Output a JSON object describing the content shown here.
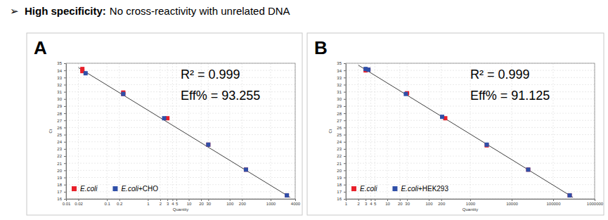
{
  "header": {
    "bullet": "➢",
    "bold": "High specificity:",
    "text": "No cross-reactivity with unrelated DNA"
  },
  "chart_data": [
    {
      "type": "scatter",
      "title": "A",
      "x_label": "Quantity",
      "y_label": "Ct",
      "log": "x",
      "grid": true,
      "legend": "bottom-left",
      "marker": "square",
      "xlim": [
        0.01,
        4000
      ],
      "xticks": [
        0.01,
        0.02,
        0.1,
        0.2,
        1,
        2,
        3,
        4,
        5,
        10,
        20,
        30,
        100,
        200,
        1000,
        4000
      ],
      "ylim": [
        16,
        35
      ],
      "yticks": [
        16,
        17,
        18,
        19,
        20,
        21,
        22,
        23,
        24,
        25,
        26,
        27,
        28,
        29,
        30,
        31,
        32,
        33,
        34,
        35
      ],
      "annotations": [
        "R² = 0.999",
        "Eff% = 93.255"
      ],
      "series": [
        {
          "name": "E.coli",
          "color": "#e8202a",
          "x": [
            0.025,
            0.025,
            0.25,
            0.25,
            3,
            30,
            250,
            2500
          ],
          "values": [
            34.2,
            33.9,
            30.9,
            30.7,
            27.3,
            23.6,
            20.1,
            16.5
          ]
        },
        {
          "name": "E.coli+CHO",
          "color": "#2f4fa8",
          "x": [
            0.03,
            0.25,
            2.5,
            30,
            250,
            2500
          ],
          "values": [
            33.6,
            30.7,
            27.3,
            23.6,
            20.1,
            16.5
          ]
        },
        {
          "type": "line",
          "line_style": "solid",
          "color": "#404040",
          "x": [
            0.02,
            3000
          ],
          "values": [
            34.39,
            16.22
          ]
        }
      ]
    },
    {
      "type": "scatter",
      "title": "B",
      "x_label": "Quantity",
      "y_label": "Ct",
      "log": "x",
      "grid": true,
      "legend": "bottom-left",
      "marker": "square",
      "xlim": [
        1,
        1000000
      ],
      "xticks": [
        1,
        2,
        3,
        4,
        5,
        10,
        20,
        30,
        100,
        200,
        1000,
        10000,
        100000,
        1000000
      ],
      "ylim": [
        16,
        35
      ],
      "yticks": [
        16,
        17,
        18,
        19,
        20,
        21,
        22,
        23,
        24,
        25,
        26,
        27,
        28,
        29,
        30,
        31,
        32,
        33,
        34,
        35
      ],
      "annotations": [
        "R² = 0.999",
        "Eff% = 91.125"
      ],
      "series": [
        {
          "name": "E.coli",
          "color": "#e8202a",
          "x": [
            3,
            3.5,
            30,
            250,
            2500,
            25000,
            250000
          ],
          "values": [
            34.0,
            34.1,
            30.8,
            27.3,
            23.5,
            20.1,
            16.5
          ]
        },
        {
          "name": "E.coli+HEK293",
          "color": "#2f4fa8",
          "x": [
            3,
            3.5,
            28,
            210,
            2500,
            25000,
            250000
          ],
          "values": [
            34.2,
            34.1,
            30.7,
            27.5,
            23.6,
            20.1,
            16.5
          ]
        },
        {
          "type": "line",
          "line_style": "solid",
          "color": "#404040",
          "x": [
            2,
            300000
          ],
          "values": [
            34.73,
            16.22
          ]
        }
      ]
    }
  ]
}
